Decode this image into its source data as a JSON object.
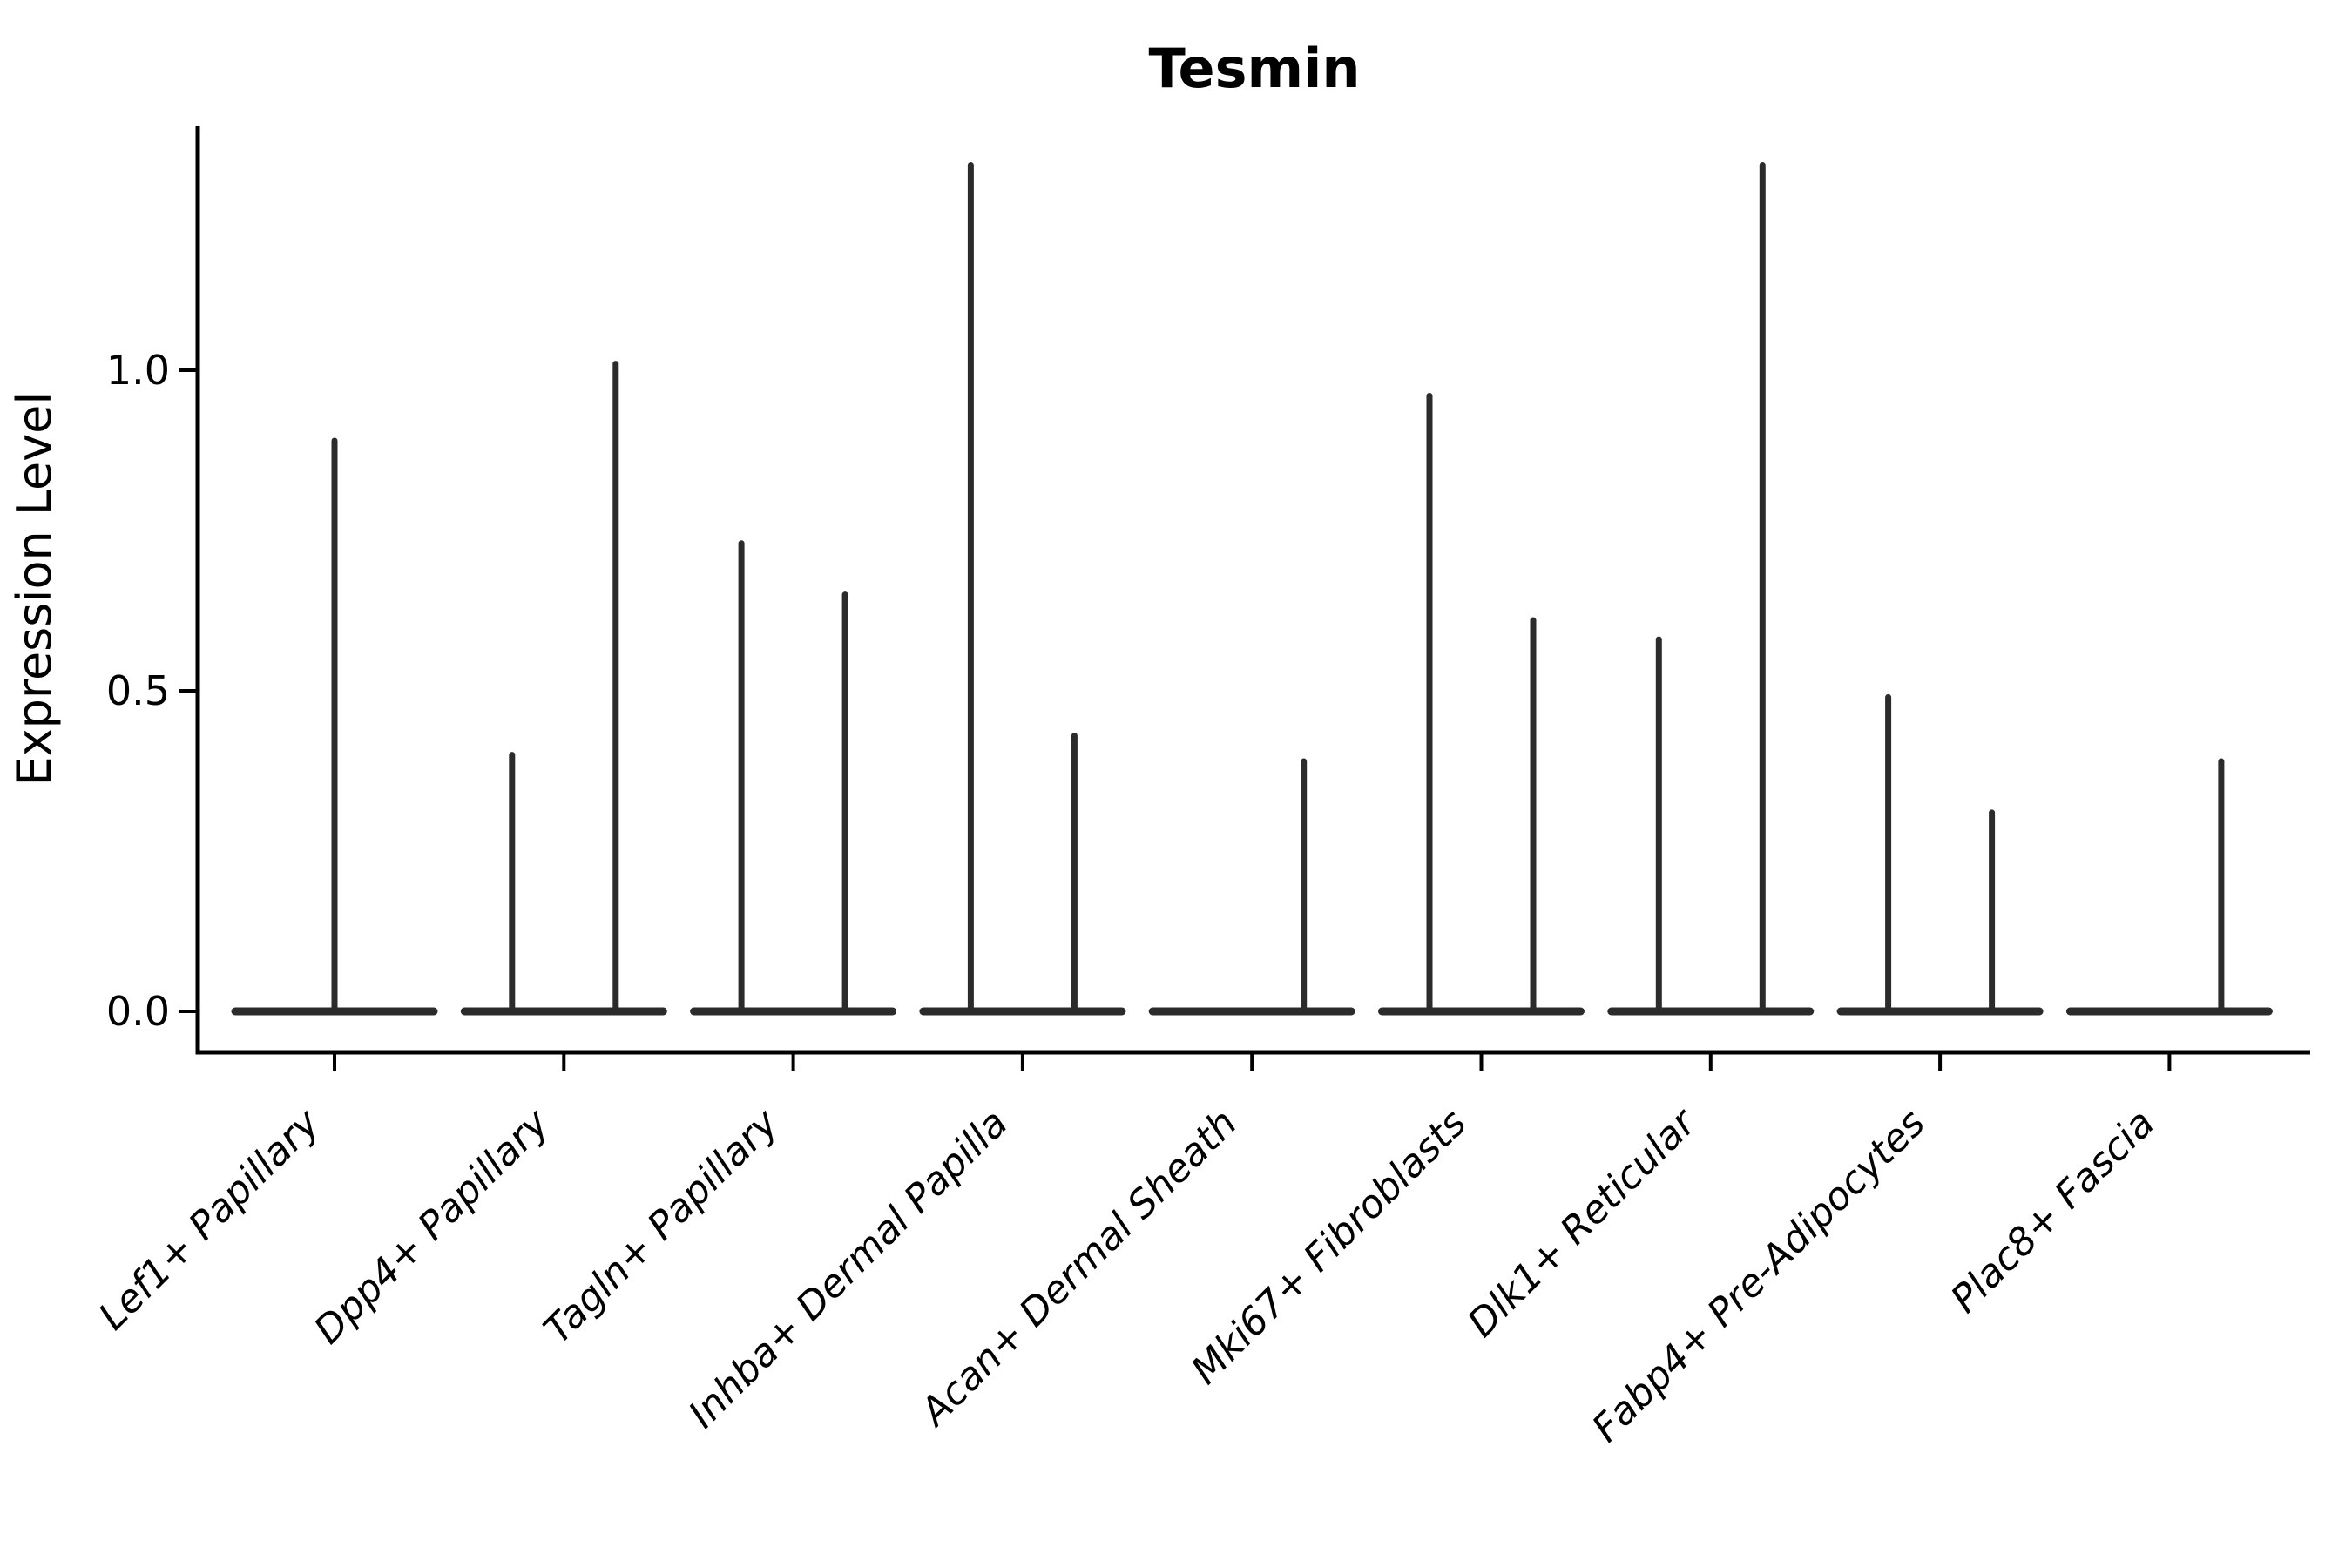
{
  "figure": {
    "background": "#ffffff",
    "axis_color": "#000000",
    "violin_color": "#2b2b2b"
  },
  "chart_data": {
    "type": "violin",
    "title": "Tesmin",
    "xlabel": "",
    "ylabel": "Expression Level",
    "legend": null,
    "grid": false,
    "ylim": [
      -0.06,
      1.38
    ],
    "yticks": [
      {
        "label": "0.0",
        "value": 0.0
      },
      {
        "label": "0.5",
        "value": 0.5
      },
      {
        "label": "1.0",
        "value": 1.0
      }
    ],
    "categories": [
      {
        "label": "Lef1+ Papillary",
        "violins": [
          {
            "position": "center",
            "max": 0.89
          }
        ]
      },
      {
        "label": "Dpp4+ Papillary",
        "violins": [
          {
            "position": "left",
            "max": 0.4
          },
          {
            "position": "right",
            "max": 1.01
          }
        ]
      },
      {
        "label": "Tagln+ Papillary",
        "violins": [
          {
            "position": "left",
            "max": 0.73
          },
          {
            "position": "right",
            "max": 0.65
          }
        ]
      },
      {
        "label": "Inhba+ Dermal Papilla",
        "violins": [
          {
            "position": "left",
            "max": 1.32
          },
          {
            "position": "right",
            "max": 0.43
          }
        ]
      },
      {
        "label": "Acan+ Dermal Sheath",
        "violins": [
          {
            "position": "right",
            "max": 0.39
          }
        ]
      },
      {
        "label": "Mki67+ Fibroblasts",
        "violins": [
          {
            "position": "left",
            "max": 0.96
          },
          {
            "position": "right",
            "max": 0.61
          }
        ]
      },
      {
        "label": "Dlk1+ Reticular",
        "violins": [
          {
            "position": "left",
            "max": 0.58
          },
          {
            "position": "right",
            "max": 1.32
          }
        ]
      },
      {
        "label": "Fabp4+ Pre-Adipocytes",
        "violins": [
          {
            "position": "left",
            "max": 0.49
          },
          {
            "position": "right",
            "max": 0.31
          }
        ]
      },
      {
        "label": "Plac8+ Fascia",
        "violins": [
          {
            "position": "right",
            "max": 0.39
          }
        ]
      }
    ]
  }
}
